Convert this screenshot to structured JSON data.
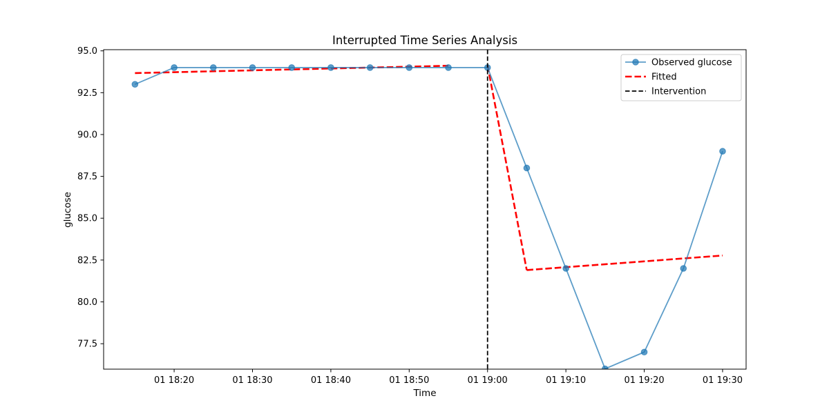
{
  "chart_data": {
    "type": "line",
    "title": "Interrupted Time Series Analysis",
    "xlabel": "Time",
    "ylabel": "glucose",
    "x": [
      "18:15",
      "18:20",
      "18:25",
      "18:30",
      "18:35",
      "18:40",
      "18:45",
      "18:50",
      "18:55",
      "19:00",
      "19:05",
      "19:10",
      "19:15",
      "19:20",
      "19:25",
      "19:30"
    ],
    "x_ticks": [
      "01 18:20",
      "01 18:30",
      "01 18:40",
      "01 18:50",
      "01 19:00",
      "01 19:10",
      "01 19:20",
      "01 19:30"
    ],
    "y_ticks": [
      "77.5",
      "80.0",
      "82.5",
      "85.0",
      "87.5",
      "90.0",
      "92.5",
      "95.0"
    ],
    "ylim": [
      75.98,
      95.07
    ],
    "xlim": [
      "18:11",
      "19:33"
    ],
    "grid": false,
    "legend_position": "top-right",
    "series": [
      {
        "name": "Observed glucose",
        "style": "line-with-markers",
        "color": "#1f77b4",
        "values": [
          93,
          94,
          94,
          94,
          94,
          94,
          94,
          94,
          94,
          94,
          88,
          82,
          76,
          77,
          82,
          89
        ]
      },
      {
        "name": "Fitted",
        "style": "dashed",
        "color": "#ff0000",
        "segments": [
          {
            "x": [
              "18:15",
              "18:55"
            ],
            "y": [
              93.67,
              94.11
            ]
          },
          {
            "x": [
              "19:00",
              "19:05"
            ],
            "y": [
              94.13,
              81.9
            ]
          },
          {
            "x": [
              "19:05",
              "19:30"
            ],
            "y": [
              81.9,
              82.77
            ]
          }
        ]
      },
      {
        "name": "Intervention",
        "style": "vertical-dashed",
        "color": "#000000",
        "x": "19:00"
      }
    ]
  }
}
